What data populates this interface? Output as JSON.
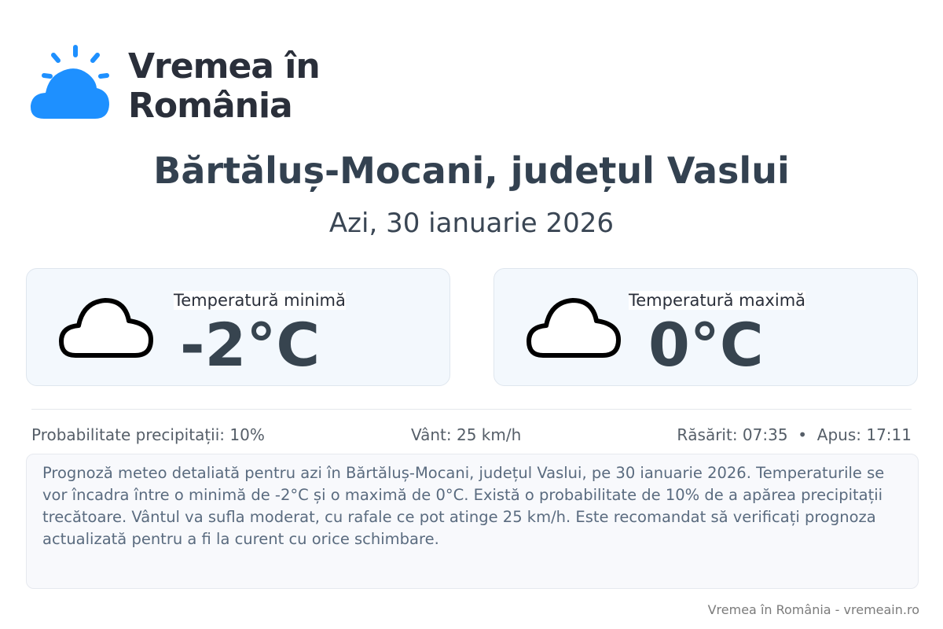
{
  "brand": {
    "line1": "Vremea în",
    "line2": "România",
    "color": "#1e90ff"
  },
  "header": {
    "title": "Bărtăluș-Mocani, județul Vaslui",
    "date": "Azi, 30 ianuarie 2026"
  },
  "cards": [
    {
      "label": "Temperatură minimă",
      "value": "-2°C",
      "icon": "cloud-icon"
    },
    {
      "label": "Temperatură maximă",
      "value": "0°C",
      "icon": "cloud-icon"
    }
  ],
  "info": {
    "precip": "Probabilitate precipitații: 10%",
    "wind": "Vânt: 25 km/h",
    "sun": "Răsărit: 07:35  •  Apus: 17:11"
  },
  "description": "Prognoză meteo detaliată pentru azi în Bărtăluș-Mocani, județul Vaslui, pe 30 ianuarie 2026. Temperaturile se vor încadra între o minimă de -2°C și o maximă de 0°C. Există o probabilitate de 10% de a apărea precipitații trecătoare. Vântul va sufla moderat, cu rafale ce pot atinge 25 km/h. Este recomandat să verificați prognoza actualizată pentru a fi la curent cu orice schimbare.",
  "footer": "Vremea în România - vremeain.ro"
}
